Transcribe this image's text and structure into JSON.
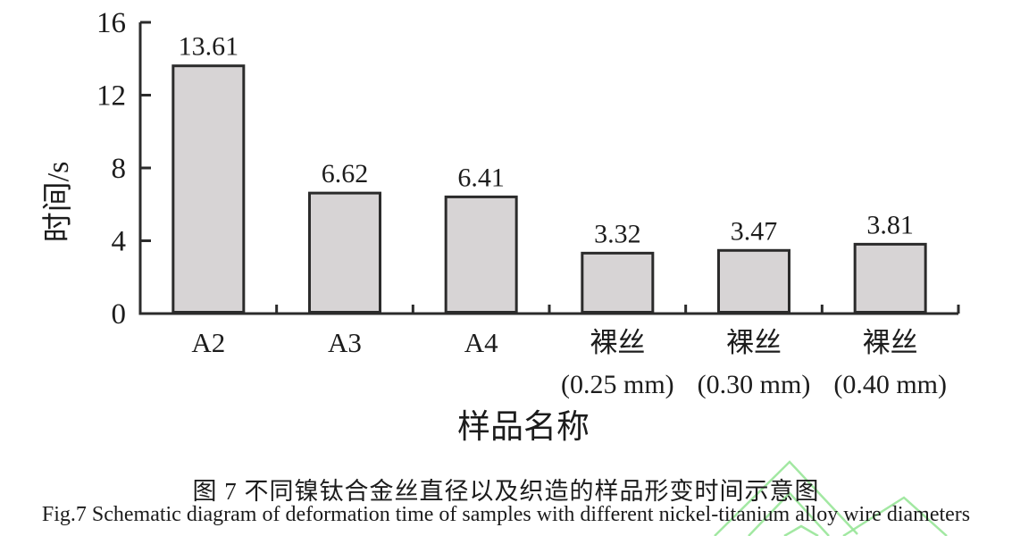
{
  "figure": {
    "caption_chinese": "图 7  不同镍钛合金丝直径以及织造的样品形变时间示意图",
    "caption_english": "Fig.7 Schematic diagram of deformation time of samples with different nickel-titanium alloy wire diameters"
  },
  "chart_data": {
    "type": "bar",
    "title": "",
    "xlabel": "样品名称",
    "ylabel": "时间/s",
    "categories": [
      [
        "A2"
      ],
      [
        "A3"
      ],
      [
        "A4"
      ],
      [
        "裸丝",
        "(0.25 mm)"
      ],
      [
        "裸丝",
        "(0.30 mm)"
      ],
      [
        "裸丝",
        "(0.40 mm)"
      ]
    ],
    "values": [
      13.61,
      6.62,
      6.41,
      3.32,
      3.47,
      3.81
    ],
    "value_labels": [
      "13.61",
      "6.62",
      "6.41",
      "3.32",
      "3.47",
      "3.81"
    ],
    "ylim": [
      0,
      16
    ],
    "yticks": [
      0,
      4,
      8,
      12,
      16
    ],
    "grid": false,
    "legend": "none",
    "colors": {
      "bar_fill": "#d7d4d5",
      "bar_border": "#2b2b2b",
      "axis": "#2b2b2b",
      "text": "#1c1c1c"
    }
  },
  "watermark": {
    "name": "green-chevron-watermark",
    "color": "#98e698"
  }
}
